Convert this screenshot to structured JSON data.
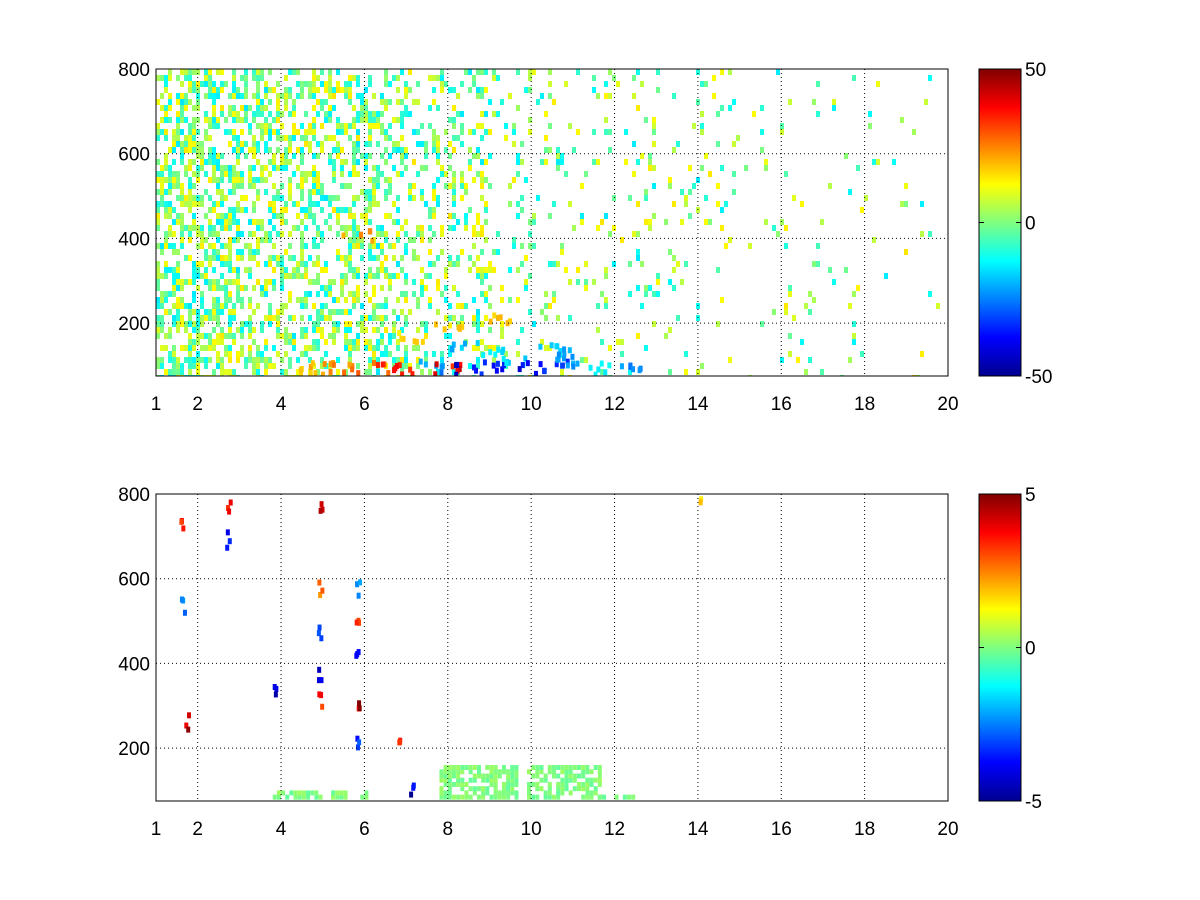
{
  "chart_data": [
    {
      "type": "heatmap",
      "title": "",
      "xlabel": "",
      "ylabel": "",
      "xlim": [
        1,
        20
      ],
      "ylim": [
        75,
        800
      ],
      "xticks": [
        "1",
        "2",
        "4",
        "6",
        "8",
        "10",
        "12",
        "14",
        "16",
        "18",
        "20"
      ],
      "xtick_values": [
        1,
        2,
        4,
        6,
        8,
        10,
        12,
        14,
        16,
        18,
        20
      ],
      "yticks": [
        "200",
        "400",
        "600",
        "800"
      ],
      "ytick_values": [
        200,
        400,
        600,
        800
      ],
      "grid": true,
      "colormap": "jet",
      "colorbar": {
        "min": -50,
        "max": 50,
        "ticks": [
          "50",
          "0",
          "-50"
        ],
        "tick_values": [
          50,
          0,
          -50
        ]
      },
      "density": [
        0.55,
        0.55,
        0.45,
        0.4,
        0.25,
        0.12,
        0.08,
        0.06,
        0.04,
        0.025,
        0.015
      ],
      "cells": [
        {
          "x": 4.5,
          "y": 85,
          "v": 22
        },
        {
          "x": 5.0,
          "y": 85,
          "v": 25
        },
        {
          "x": 5.5,
          "y": 85,
          "v": 30
        },
        {
          "x": 6.5,
          "y": 85,
          "v": 35
        },
        {
          "x": 7.0,
          "y": 85,
          "v": 42
        },
        {
          "x": 7.5,
          "y": 90,
          "v": -28
        },
        {
          "x": 8.0,
          "y": 85,
          "v": 45
        },
        {
          "x": 8.5,
          "y": 85,
          "v": -45
        },
        {
          "x": 9.0,
          "y": 90,
          "v": -40
        },
        {
          "x": 9.5,
          "y": 100,
          "v": -20
        },
        {
          "x": 10.0,
          "y": 85,
          "v": -45
        },
        {
          "x": 10.5,
          "y": 90,
          "v": -38
        },
        {
          "x": 11.0,
          "y": 100,
          "v": -25
        },
        {
          "x": 11.5,
          "y": 85,
          "v": -15
        },
        {
          "x": 12.3,
          "y": 85,
          "v": -30
        },
        {
          "x": 5.8,
          "y": 400,
          "v": 28
        },
        {
          "x": 8.4,
          "y": 140,
          "v": -22
        },
        {
          "x": 9.0,
          "y": 130,
          "v": -18
        },
        {
          "x": 10.4,
          "y": 130,
          "v": -20
        },
        {
          "x": 10.9,
          "y": 120,
          "v": -24
        },
        {
          "x": 7.0,
          "y": 160,
          "v": 18
        },
        {
          "x": 8.0,
          "y": 180,
          "v": 20
        },
        {
          "x": 9.2,
          "y": 200,
          "v": 22
        }
      ]
    },
    {
      "type": "heatmap",
      "title": "",
      "xlabel": "",
      "ylabel": "",
      "xlim": [
        1,
        20
      ],
      "ylim": [
        75,
        800
      ],
      "xticks": [
        "1",
        "2",
        "4",
        "6",
        "8",
        "10",
        "12",
        "14",
        "16",
        "18",
        "20"
      ],
      "xtick_values": [
        1,
        2,
        4,
        6,
        8,
        10,
        12,
        14,
        16,
        18,
        20
      ],
      "yticks": [
        "200",
        "400",
        "600",
        "800"
      ],
      "ytick_values": [
        200,
        400,
        600,
        800
      ],
      "grid": true,
      "colormap": "jet",
      "colorbar": {
        "min": -5,
        "max": 5,
        "ticks": [
          "5",
          "0",
          "-5"
        ],
        "tick_values": [
          5,
          0,
          -5
        ]
      },
      "cells": [
        {
          "x": 1.6,
          "y": 720,
          "v": 4
        },
        {
          "x": 1.6,
          "y": 520,
          "v": -3
        },
        {
          "x": 1.7,
          "y": 250,
          "v": 5
        },
        {
          "x": 2.7,
          "y": 760,
          "v": 4
        },
        {
          "x": 2.7,
          "y": 680,
          "v": -4
        },
        {
          "x": 3.8,
          "y": 330,
          "v": -5
        },
        {
          "x": 4.9,
          "y": 760,
          "v": 5
        },
        {
          "x": 4.9,
          "y": 560,
          "v": 3
        },
        {
          "x": 4.9,
          "y": 460,
          "v": -4
        },
        {
          "x": 4.9,
          "y": 350,
          "v": -5
        },
        {
          "x": 4.9,
          "y": 300,
          "v": 4
        },
        {
          "x": 5.8,
          "y": 560,
          "v": -3
        },
        {
          "x": 5.8,
          "y": 480,
          "v": 4
        },
        {
          "x": 5.8,
          "y": 400,
          "v": -5
        },
        {
          "x": 5.8,
          "y": 300,
          "v": 5
        },
        {
          "x": 5.8,
          "y": 200,
          "v": -4
        },
        {
          "x": 6.8,
          "y": 220,
          "v": 4
        },
        {
          "x": 7.1,
          "y": 85,
          "v": -5
        },
        {
          "x": 14.0,
          "y": 775,
          "v": 2
        }
      ],
      "greenblock": [
        {
          "x0": 3.8,
          "x1": 6.0,
          "y0": 80,
          "y1": 92
        },
        {
          "x0": 7.8,
          "x1": 9.6,
          "y0": 80,
          "y1": 160
        },
        {
          "x0": 9.9,
          "x1": 11.6,
          "y0": 80,
          "y1": 155
        },
        {
          "x0": 11.6,
          "x1": 12.6,
          "y0": 80,
          "y1": 90
        }
      ]
    }
  ]
}
